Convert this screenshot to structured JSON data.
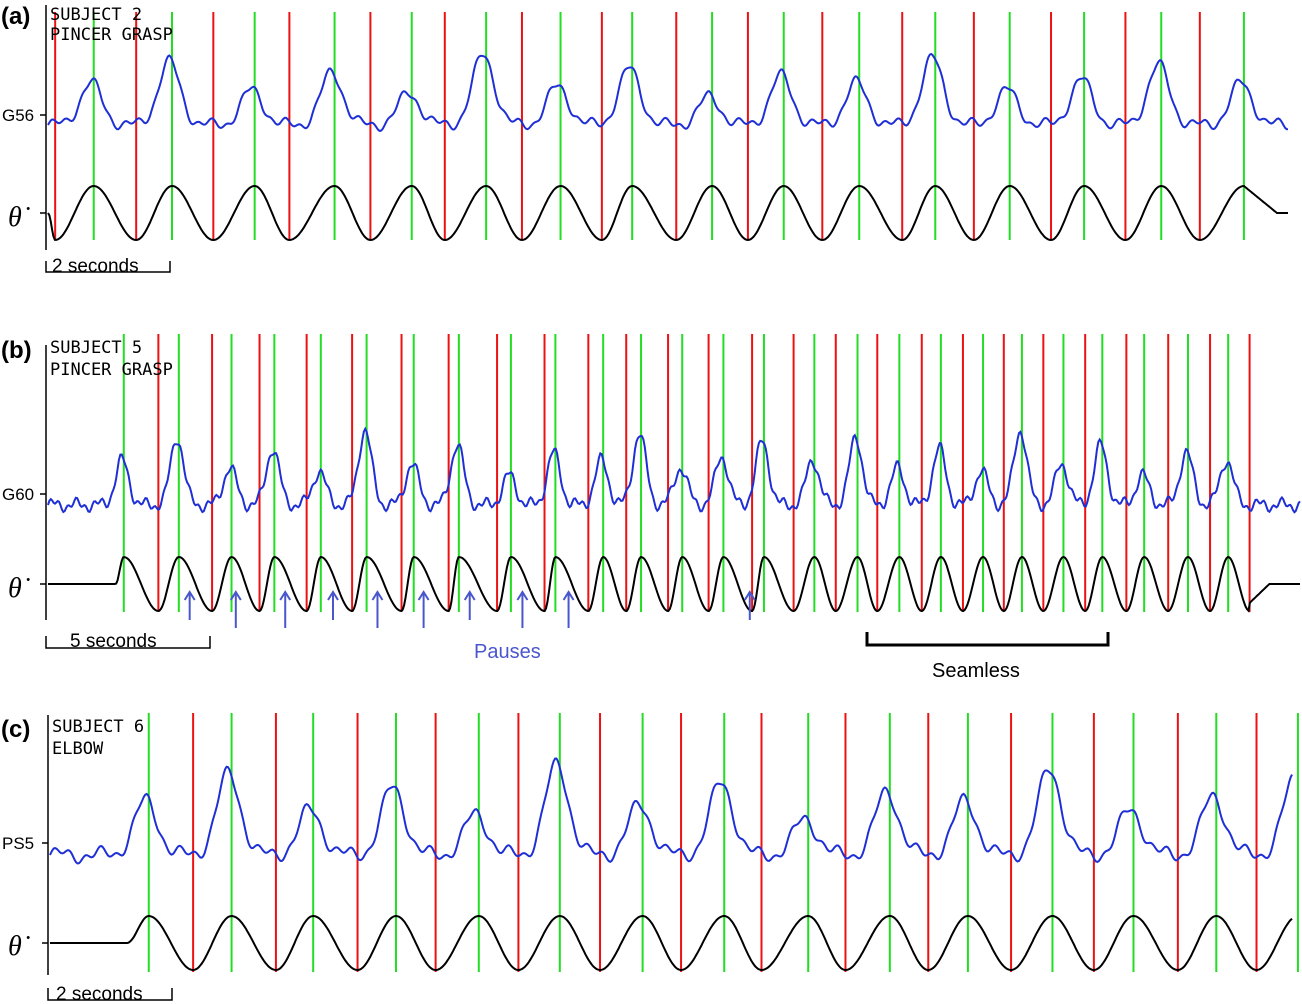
{
  "colors": {
    "emg_trace": "#1f2fd6",
    "velocity_trace": "#000000",
    "peak_marker": "#22dd22",
    "trough_marker": "#ee1111",
    "pause_arrow": "#4a56cc",
    "axis": "#000000"
  },
  "chart_data": [
    {
      "type": "line",
      "panel_label": "(a)",
      "title_lines": [
        "SUBJECT 2",
        "PINCER GRASP"
      ],
      "series": [
        {
          "name": "G56"
        },
        {
          "name": "θ̇"
        }
      ],
      "scale_bar": "2 seconds",
      "x_range_seconds": [
        0,
        22.5
      ],
      "markers": {
        "peak_times": [
          0.83,
          2.25,
          3.75,
          5.2,
          6.6,
          7.95,
          9.3,
          10.6,
          12.05,
          13.35,
          14.72,
          16.1,
          17.45,
          18.8,
          20.2,
          21.7
        ],
        "trough_times": [
          0.13,
          1.6,
          3.0,
          4.38,
          5.85,
          7.2,
          8.6,
          10.05,
          11.4,
          12.7,
          14.05,
          15.5,
          16.8,
          18.2,
          19.55,
          20.9
        ]
      }
    },
    {
      "type": "line",
      "panel_label": "(b)",
      "title_lines": [
        "SUBJECT 5",
        "PINCER GRASP"
      ],
      "series": [
        {
          "name": "G60"
        },
        {
          "name": "θ̇"
        }
      ],
      "scale_bar": "5 seconds",
      "x_range_seconds": [
        0,
        38
      ],
      "markers": {
        "peak_times": [
          2.3,
          3.97,
          5.57,
          6.87,
          8.28,
          9.67,
          11.1,
          12.47,
          14.05,
          15.4,
          16.85,
          18.0,
          19.25,
          20.5,
          21.73,
          23.26,
          24.57,
          25.84,
          27.1,
          28.38,
          29.56,
          30.82,
          32.0,
          33.27,
          34.6,
          35.82
        ],
        "trough_times": [
          3.35,
          4.98,
          6.42,
          7.85,
          9.23,
          10.73,
          12.16,
          13.63,
          15.07,
          16.4,
          17.55,
          18.82,
          20.05,
          21.37,
          22.63,
          23.91,
          25.17,
          26.52,
          27.77,
          29.01,
          30.21,
          31.48,
          32.73,
          34.0,
          35.27,
          36.47
        ]
      },
      "annotations": {
        "pauses_label": "Pauses",
        "pause_times": [
          4.3,
          5.7,
          7.2,
          8.65,
          10.0,
          11.4,
          12.8,
          14.4,
          15.8,
          21.3
        ],
        "seamless_label": "Seamless",
        "seamless_range_seconds": [
          25.6,
          32.9
        ]
      }
    },
    {
      "type": "line",
      "panel_label": "(c)",
      "title_lines": [
        "SUBJECT 6",
        "ELBOW"
      ],
      "series": [
        {
          "name": "PS5"
        },
        {
          "name": "θ̇"
        }
      ],
      "scale_bar": "2 seconds",
      "x_range_seconds": [
        0,
        21
      ],
      "markers": {
        "peak_times": [
          1.67,
          3.07,
          4.45,
          5.85,
          7.25,
          8.62,
          10.02,
          11.4,
          12.82,
          14.2,
          15.52,
          16.95,
          18.32,
          19.72,
          21.1
        ],
        "trough_times": [
          2.42,
          3.82,
          5.2,
          6.52,
          7.92,
          9.3,
          10.67,
          12.03,
          13.45,
          14.85,
          16.25,
          17.65,
          19.07,
          20.4
        ]
      }
    }
  ]
}
